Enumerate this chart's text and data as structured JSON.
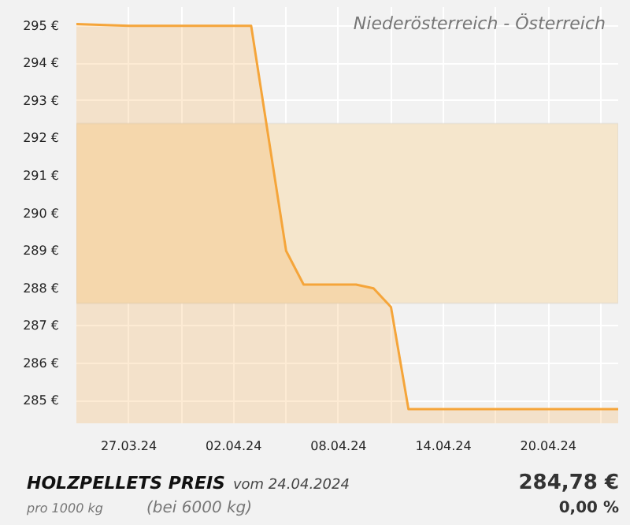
{
  "chart_data": {
    "type": "area",
    "title": "Niederösterreich - Österreich",
    "x": [
      "2024-03-24",
      "2024-03-27",
      "2024-04-03",
      "2024-04-05",
      "2024-04-06",
      "2024-04-09",
      "2024-04-10",
      "2024-04-11",
      "2024-04-12",
      "2024-04-24"
    ],
    "series": [
      {
        "color": "#f5a53a",
        "values": [
          295.05,
          295.0,
          295.0,
          289.0,
          288.1,
          288.1,
          288.0,
          287.5,
          284.78,
          284.78
        ]
      }
    ],
    "xlim": [
      "2024-03-24",
      "2024-04-24"
    ],
    "xticks": [
      {
        "value": "2024-03-27",
        "label": "27.03.24"
      },
      {
        "value": "2024-03-30",
        "label": null
      },
      {
        "value": "2024-04-02",
        "label": "02.04.24"
      },
      {
        "value": "2024-04-05",
        "label": null
      },
      {
        "value": "2024-04-08",
        "label": "08.04.24"
      },
      {
        "value": "2024-04-11",
        "label": null
      },
      {
        "value": "2024-04-14",
        "label": "14.04.24"
      },
      {
        "value": "2024-04-17",
        "label": null
      },
      {
        "value": "2024-04-20",
        "label": "20.04.24"
      },
      {
        "value": "2024-04-23",
        "label": null
      }
    ],
    "ylim": [
      284.4,
      295.5
    ],
    "yticks": [
      {
        "value": 285,
        "label": "285 €"
      },
      {
        "value": 286,
        "label": "286 €"
      },
      {
        "value": 287,
        "label": "287 €"
      },
      {
        "value": 288,
        "label": "288 €"
      },
      {
        "value": 289,
        "label": "289 €"
      },
      {
        "value": 290,
        "label": "290 €"
      },
      {
        "value": 291,
        "label": "291 €"
      },
      {
        "value": 292,
        "label": "292 €"
      },
      {
        "value": 293,
        "label": "293 €"
      },
      {
        "value": 294,
        "label": "294 €"
      },
      {
        "value": 295,
        "label": "295 €"
      }
    ],
    "bands": [
      {
        "axis": "y",
        "from": 287.6,
        "to": 292.4,
        "color": "#f5e6cc"
      }
    ],
    "grid": true,
    "annotations": [
      "HOLZPELLETS PREIS",
      "vom 24.04.2024",
      "pro 1000 kg",
      "(bei 6000 kg)",
      "284,78 €",
      "0,00 %"
    ]
  }
}
